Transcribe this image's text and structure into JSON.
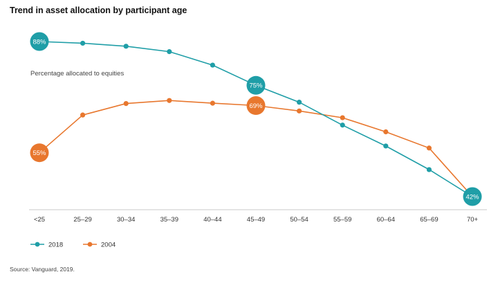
{
  "title": "Trend in asset allocation by participant age",
  "source": "Source: Vanguard, 2019.",
  "chart_data": {
    "type": "line",
    "title": "Trend in asset allocation by participant age",
    "annotation": "Percentage allocated to equities",
    "categories": [
      "<25",
      "25–29",
      "30–34",
      "35–39",
      "40–44",
      "45–49",
      "50–54",
      "55–59",
      "60–64",
      "65–69",
      "70+"
    ],
    "series": [
      {
        "name": "2018",
        "color": "#1f9ea7",
        "values": [
          88,
          87.5,
          86.6,
          85,
          81,
          75,
          70,
          63.2,
          57,
          50,
          42
        ]
      },
      {
        "name": "2004",
        "color": "#e8772e",
        "values": [
          55,
          66.2,
          69.6,
          70.5,
          69.7,
          69,
          67.4,
          65.4,
          61.2,
          56.4,
          42
        ]
      }
    ],
    "data_labels": [
      {
        "series": 0,
        "index": 0,
        "label": "88%"
      },
      {
        "series": 0,
        "index": 5,
        "label": "75%"
      },
      {
        "series": 0,
        "index": 10,
        "label": "42%"
      },
      {
        "series": 1,
        "index": 0,
        "label": "55%"
      },
      {
        "series": 1,
        "index": 5,
        "label": "69%"
      }
    ],
    "ylim": [
      40,
      90
    ],
    "grid": false,
    "legend_position": "bottom-left"
  }
}
